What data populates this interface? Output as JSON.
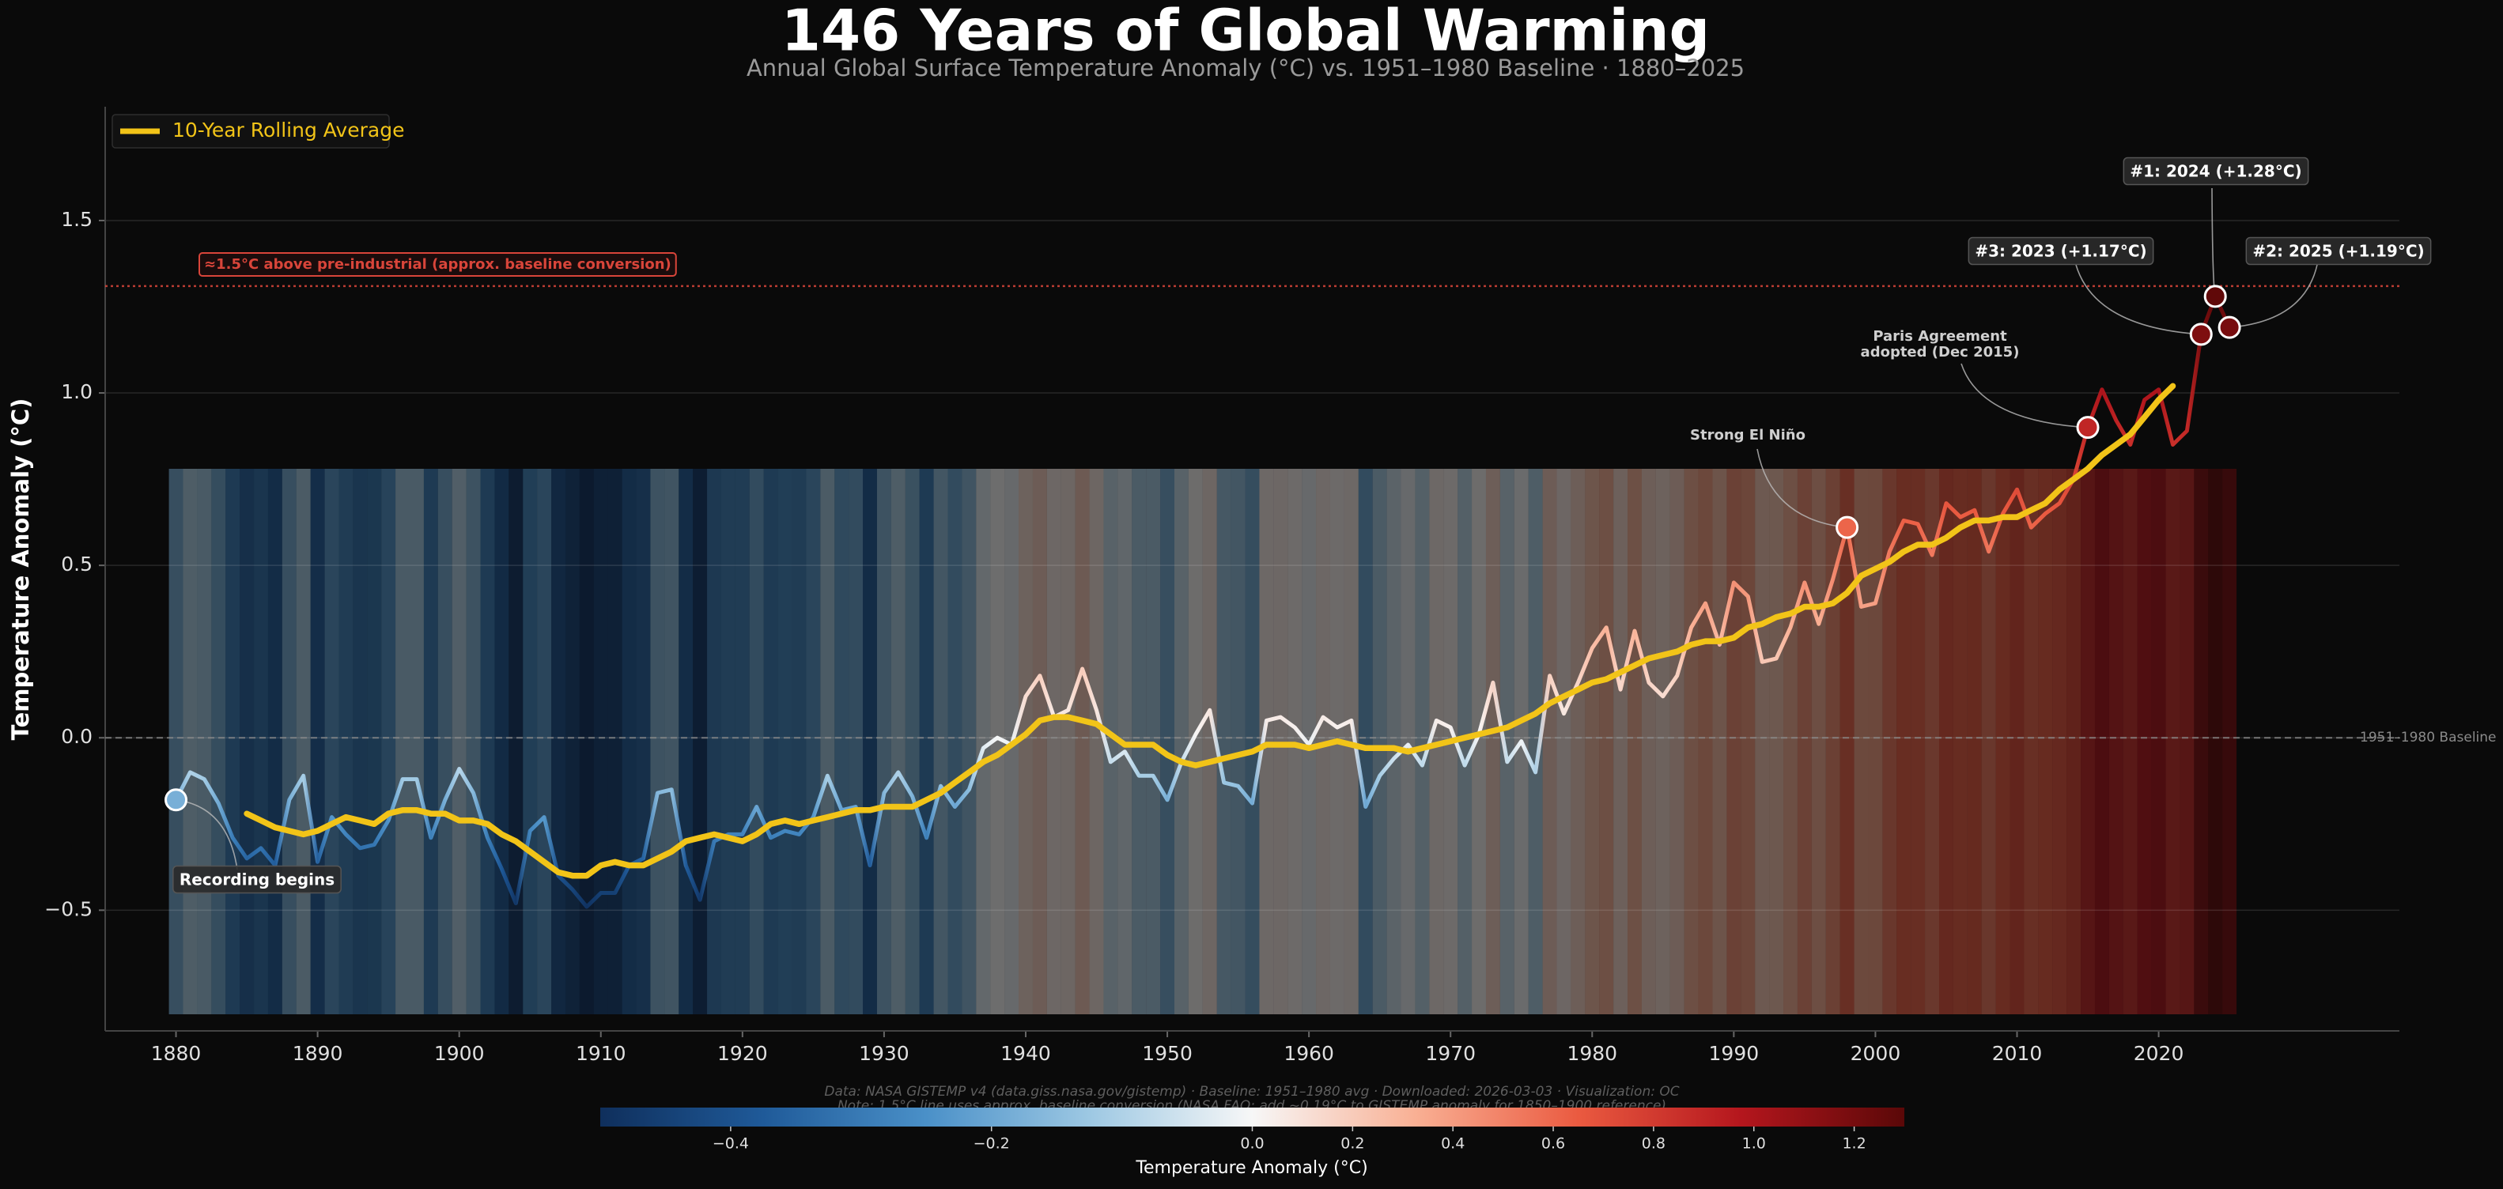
{
  "chart_data": {
    "type": "line",
    "title": "146 Years of Global Warming",
    "subtitle": "Annual Global Surface Temperature Anomaly (°C) vs. 1951–1980 Baseline  ·  1880–2025",
    "y_label": "Temperature Anomaly (°C)",
    "x": [
      1880,
      1881,
      1882,
      1883,
      1884,
      1885,
      1886,
      1887,
      1888,
      1889,
      1890,
      1891,
      1892,
      1893,
      1894,
      1895,
      1896,
      1897,
      1898,
      1899,
      1900,
      1901,
      1902,
      1903,
      1904,
      1905,
      1906,
      1907,
      1908,
      1909,
      1910,
      1911,
      1912,
      1913,
      1914,
      1915,
      1916,
      1917,
      1918,
      1919,
      1920,
      1921,
      1922,
      1923,
      1924,
      1925,
      1926,
      1927,
      1928,
      1929,
      1930,
      1931,
      1932,
      1933,
      1934,
      1935,
      1936,
      1937,
      1938,
      1939,
      1940,
      1941,
      1942,
      1943,
      1944,
      1945,
      1946,
      1947,
      1948,
      1949,
      1950,
      1951,
      1952,
      1953,
      1954,
      1955,
      1956,
      1957,
      1958,
      1959,
      1960,
      1961,
      1962,
      1963,
      1964,
      1965,
      1966,
      1967,
      1968,
      1969,
      1970,
      1971,
      1972,
      1973,
      1974,
      1975,
      1976,
      1977,
      1978,
      1979,
      1980,
      1981,
      1982,
      1983,
      1984,
      1985,
      1986,
      1987,
      1988,
      1989,
      1990,
      1991,
      1992,
      1993,
      1994,
      1995,
      1996,
      1997,
      1998,
      1999,
      2000,
      2001,
      2002,
      2003,
      2004,
      2005,
      2006,
      2007,
      2008,
      2009,
      2010,
      2011,
      2012,
      2013,
      2014,
      2015,
      2016,
      2017,
      2018,
      2019,
      2020,
      2021,
      2022,
      2023,
      2024,
      2025
    ],
    "series": [
      {
        "values": [
          -0.18,
          -0.1,
          -0.12,
          -0.19,
          -0.29,
          -0.35,
          -0.32,
          -0.37,
          -0.18,
          -0.11,
          -0.36,
          -0.23,
          -0.28,
          -0.32,
          -0.31,
          -0.24,
          -0.12,
          -0.12,
          -0.29,
          -0.18,
          -0.09,
          -0.16,
          -0.29,
          -0.38,
          -0.48,
          -0.27,
          -0.23,
          -0.4,
          -0.44,
          -0.49,
          -0.45,
          -0.45,
          -0.37,
          -0.35,
          -0.16,
          -0.15,
          -0.37,
          -0.47,
          -0.3,
          -0.28,
          -0.28,
          -0.2,
          -0.29,
          -0.27,
          -0.28,
          -0.23,
          -0.11,
          -0.21,
          -0.2,
          -0.37,
          -0.16,
          -0.1,
          -0.17,
          -0.29,
          -0.14,
          -0.2,
          -0.15,
          -0.03,
          0.0,
          -0.02,
          0.12,
          0.18,
          0.06,
          0.08,
          0.2,
          0.08,
          -0.07,
          -0.04,
          -0.11,
          -0.11,
          -0.18,
          -0.07,
          0.01,
          0.08,
          -0.13,
          -0.14,
          -0.19,
          0.05,
          0.06,
          0.03,
          -0.02,
          0.06,
          0.03,
          0.05,
          -0.2,
          -0.11,
          -0.06,
          -0.02,
          -0.08,
          0.05,
          0.03,
          -0.08,
          0.01,
          0.16,
          -0.07,
          -0.01,
          -0.1,
          0.18,
          0.07,
          0.16,
          0.26,
          0.32,
          0.14,
          0.31,
          0.16,
          0.12,
          0.18,
          0.32,
          0.39,
          0.27,
          0.45,
          0.41,
          0.22,
          0.23,
          0.32,
          0.45,
          0.33,
          0.46,
          0.61,
          0.38,
          0.39,
          0.54,
          0.63,
          0.62,
          0.53,
          0.68,
          0.64,
          0.66,
          0.54,
          0.65,
          0.72,
          0.61,
          0.65,
          0.68,
          0.75,
          0.9,
          1.01,
          0.92,
          0.85,
          0.98,
          1.01,
          0.85,
          0.89,
          1.17,
          1.28,
          1.19
        ]
      },
      {
        "name": "10-Year Rolling Average",
        "color": "#f2c418",
        "values": [
          null,
          null,
          null,
          null,
          null,
          -0.22,
          -0.24,
          -0.26,
          -0.27,
          -0.28,
          -0.27,
          -0.25,
          -0.23,
          -0.24,
          -0.25,
          -0.22,
          -0.21,
          -0.21,
          -0.22,
          -0.22,
          -0.24,
          -0.24,
          -0.25,
          -0.28,
          -0.3,
          -0.33,
          -0.36,
          -0.39,
          -0.4,
          -0.4,
          -0.37,
          -0.36,
          -0.37,
          -0.37,
          -0.35,
          -0.33,
          -0.3,
          -0.29,
          -0.28,
          -0.29,
          -0.3,
          -0.28,
          -0.25,
          -0.24,
          -0.25,
          -0.24,
          -0.23,
          -0.22,
          -0.21,
          -0.21,
          -0.2,
          -0.2,
          -0.2,
          -0.18,
          -0.16,
          -0.13,
          -0.1,
          -0.07,
          -0.05,
          -0.02,
          0.01,
          0.05,
          0.06,
          0.06,
          0.05,
          0.04,
          0.01,
          -0.02,
          -0.02,
          -0.02,
          -0.05,
          -0.07,
          -0.08,
          -0.07,
          -0.06,
          -0.05,
          -0.04,
          -0.02,
          -0.02,
          -0.02,
          -0.03,
          -0.02,
          -0.01,
          -0.02,
          -0.03,
          -0.03,
          -0.03,
          -0.04,
          -0.03,
          -0.02,
          -0.01,
          0.0,
          0.01,
          0.02,
          0.03,
          0.05,
          0.07,
          0.1,
          0.12,
          0.14,
          0.16,
          0.17,
          0.19,
          0.21,
          0.23,
          0.24,
          0.25,
          0.27,
          0.28,
          0.28,
          0.29,
          0.32,
          0.33,
          0.35,
          0.36,
          0.38,
          0.38,
          0.39,
          0.42,
          0.47,
          0.49,
          0.51,
          0.54,
          0.56,
          0.56,
          0.58,
          0.61,
          0.63,
          0.63,
          0.64,
          0.64,
          0.66,
          0.68,
          0.72,
          0.75,
          0.78,
          0.82,
          0.85,
          0.88,
          0.93,
          0.98,
          1.02,
          null,
          null,
          null,
          null
        ]
      }
    ],
    "xlim": [
      1875,
      2037
    ],
    "xticks": [
      1880,
      1890,
      1900,
      1910,
      1920,
      1930,
      1940,
      1950,
      1960,
      1970,
      1980,
      1990,
      2000,
      2010,
      2020
    ],
    "ylim": [
      -0.85,
      1.83
    ],
    "yticks": [
      {
        "value": -0.5,
        "label": "−0.5"
      },
      {
        "value": 0,
        "label": "0.0"
      },
      0.5,
      {
        "value": 1,
        "label": "1.0"
      },
      1.5
    ],
    "grid": true,
    "legend": "upper left",
    "reference_lines": [
      {
        "value": 0,
        "label": "1951–1980 Baseline",
        "color": "#8a8a8a"
      },
      {
        "value": 1.31,
        "label": "≈1.5°C above pre-industrial (approx. baseline conversion)",
        "color": "#d9453a"
      }
    ],
    "annotations": [
      {
        "x": 1880,
        "lines": [
          "Recording begins"
        ]
      },
      {
        "x": 1998,
        "lines": [
          "Strong El Niño"
        ]
      },
      {
        "x": 2015,
        "lines": [
          "Paris Agreement",
          "adopted (Dec 2015)"
        ]
      },
      {
        "x": 2023,
        "lines": [
          "#3: 2023 (+1.17°C)"
        ]
      },
      {
        "x": 2024,
        "lines": [
          "#1: 2024 (+1.28°C)"
        ]
      },
      {
        "x": 2025,
        "lines": [
          "#2: 2025 (+1.19°C)"
        ]
      }
    ],
    "colorbar": {
      "label": "Temperature Anomaly (°C)",
      "clim": [
        -0.5,
        1.3
      ],
      "center": 0,
      "colors": [
        "#0f2f5c",
        "#1f5a99",
        "#4a90c8",
        "#9dc8e3",
        "#f7f7f7",
        "#f9b094",
        "#ea5a40",
        "#b4161d",
        "#5a0808"
      ],
      "ticks": [
        {
          "value": -0.4,
          "label": "−0.4"
        },
        {
          "value": -0.2,
          "label": "−0.2"
        },
        {
          "value": 0,
          "label": "0.0"
        },
        0.2,
        0.4,
        0.6,
        0.8,
        {
          "value": 1,
          "label": "1.0"
        },
        1.2
      ]
    },
    "source": "Data: NASA GISTEMP v4 (data.giss.nasa.gov/gistemp) · Baseline: 1951–1980 avg · Downloaded: 2026-03-03 · Visualization: OC",
    "note": "Note: 1.5°C line uses approx. baseline conversion (NASA FAQ: add ~0.19°C to GISTEMP anomaly for 1850–1900 reference)"
  }
}
